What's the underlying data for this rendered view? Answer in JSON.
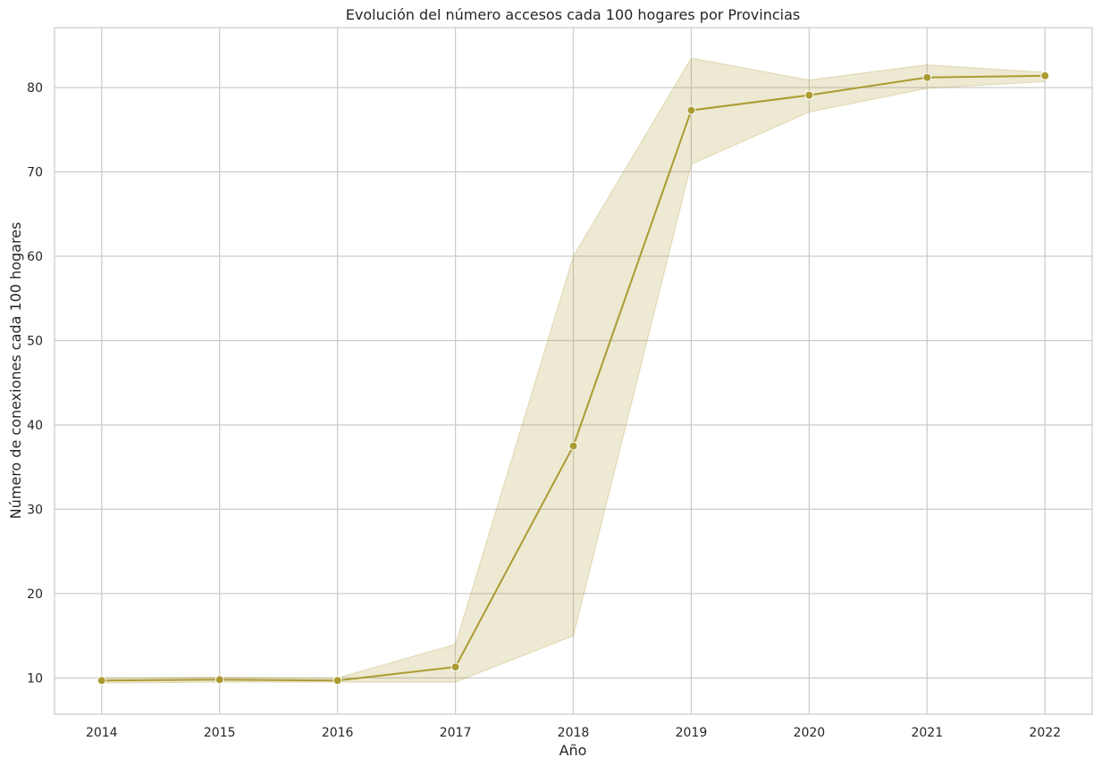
{
  "chart_data": {
    "type": "line",
    "title": "Evolución del número accesos cada 100 hogares por Provincias",
    "xlabel": "Año",
    "ylabel": "Número de conexiones cada 100 hogares",
    "x": [
      2014,
      2015,
      2016,
      2017,
      2018,
      2019,
      2020,
      2021,
      2022
    ],
    "series": [
      {
        "values": [
          9.7,
          9.8,
          9.7,
          11.3,
          37.5,
          77.3,
          79.1,
          81.2,
          81.4
        ],
        "ci_lower": [
          9.4,
          9.5,
          9.5,
          9.5,
          15.0,
          70.9,
          77.1,
          79.9,
          80.7
        ],
        "ci_upper": [
          10.0,
          10.1,
          10.0,
          14.0,
          60.0,
          83.5,
          80.9,
          82.7,
          81.8
        ],
        "color": "#ab9b32"
      }
    ],
    "xlim": [
      2013.6,
      2022.4
    ],
    "ylim": [
      5.7,
      87.1
    ],
    "xticks": [
      "2014",
      "2015",
      "2016",
      "2017",
      "2018",
      "2019",
      "2020",
      "2021",
      "2022"
    ],
    "yticks": [
      "10",
      "20",
      "30",
      "40",
      "50",
      "60",
      "70",
      "80"
    ],
    "grid": true,
    "colors": {
      "line": "#ab9b32",
      "band": "#ab9b32",
      "grid": "#cccccc",
      "spine": "#cccccc"
    }
  }
}
